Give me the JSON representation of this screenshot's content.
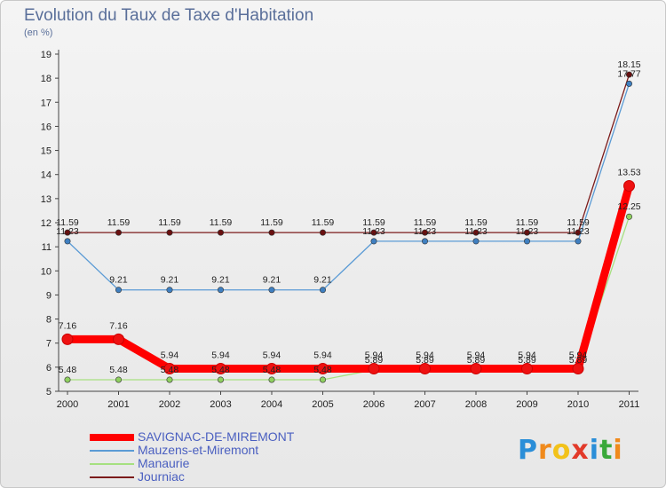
{
  "chart_data": {
    "type": "line",
    "title": "Evolution du Taux de Taxe d'Habitation",
    "subtitle": "(en %)",
    "xlabel": "",
    "ylabel": "",
    "ylim": [
      5,
      19
    ],
    "yticks": [
      5,
      6,
      7,
      8,
      9,
      10,
      11,
      12,
      13,
      14,
      15,
      16,
      17,
      18,
      19
    ],
    "grid": false,
    "legend_position": "bottom-left",
    "x": [
      "2000",
      "2001",
      "2002",
      "2003",
      "2004",
      "2005",
      "2006",
      "2007",
      "2008",
      "2009",
      "2010",
      "2011"
    ],
    "series": [
      {
        "name": "Journiac",
        "color": "#7b1a1a",
        "point_color": "#6a1010",
        "values": [
          11.59,
          11.59,
          11.59,
          11.59,
          11.59,
          11.59,
          11.59,
          11.59,
          11.59,
          11.59,
          11.59,
          18.15
        ],
        "labels": [
          "11.59",
          "11.59",
          "11.59",
          "11.59",
          "11.59",
          "11.59",
          "11.59",
          "11.59",
          "11.59",
          "11.59",
          "11.59",
          "18.15"
        ]
      },
      {
        "name": "Mauzens-et-Miremont",
        "color": "#5b9bd5",
        "point_color": "#3f7fc0",
        "values": [
          11.23,
          9.21,
          9.21,
          9.21,
          9.21,
          9.21,
          11.23,
          11.23,
          11.23,
          11.23,
          11.23,
          17.77
        ],
        "labels": [
          "11.23",
          "9.21",
          "9.21",
          "9.21",
          "9.21",
          "9.21",
          "11.23",
          "11.23",
          "11.23",
          "11.23",
          "11.23",
          "17.77"
        ]
      },
      {
        "name": "Manaurie",
        "color": "#a6e080",
        "point_color": "#8fd060",
        "values": [
          5.48,
          5.48,
          5.48,
          5.48,
          5.48,
          5.48,
          5.89,
          5.89,
          5.89,
          5.89,
          5.89,
          12.25
        ],
        "labels": [
          "5.48",
          "5.48",
          "5.48",
          "5.48",
          "5.48",
          "5.48",
          "5.89",
          "5.89",
          "5.89",
          "5.89",
          "5.89",
          "12.25"
        ]
      },
      {
        "name": "SAVIGNAC-DE-MIREMONT",
        "color": "#ff0000",
        "point_color": "#ee1111",
        "values": [
          7.16,
          7.16,
          5.94,
          5.94,
          5.94,
          5.94,
          5.94,
          5.94,
          5.94,
          5.94,
          5.94,
          13.53
        ],
        "labels": [
          "7.16",
          "7.16",
          "5.94",
          "5.94",
          "5.94",
          "5.94",
          "5.94",
          "5.94",
          "5.94",
          "5.94",
          "5.94",
          "13.53"
        ]
      }
    ]
  },
  "legend": [
    {
      "name": "SAVIGNAC-DE-MIREMONT",
      "color": "#ff0000"
    },
    {
      "name": "Mauzens-et-Miremont",
      "color": "#5b9bd5"
    },
    {
      "name": "Manaurie",
      "color": "#a6e080"
    },
    {
      "name": "Journiac",
      "color": "#7b1a1a"
    }
  ],
  "logo": {
    "letters": [
      "P",
      "r",
      "o",
      "x",
      "i",
      "t",
      "i"
    ],
    "colors": [
      "#2a8ed8",
      "#f08a1c",
      "#f2c21a",
      "#e23a2a",
      "#2a8ed8",
      "#3aa83a",
      "#f08a1c"
    ]
  }
}
